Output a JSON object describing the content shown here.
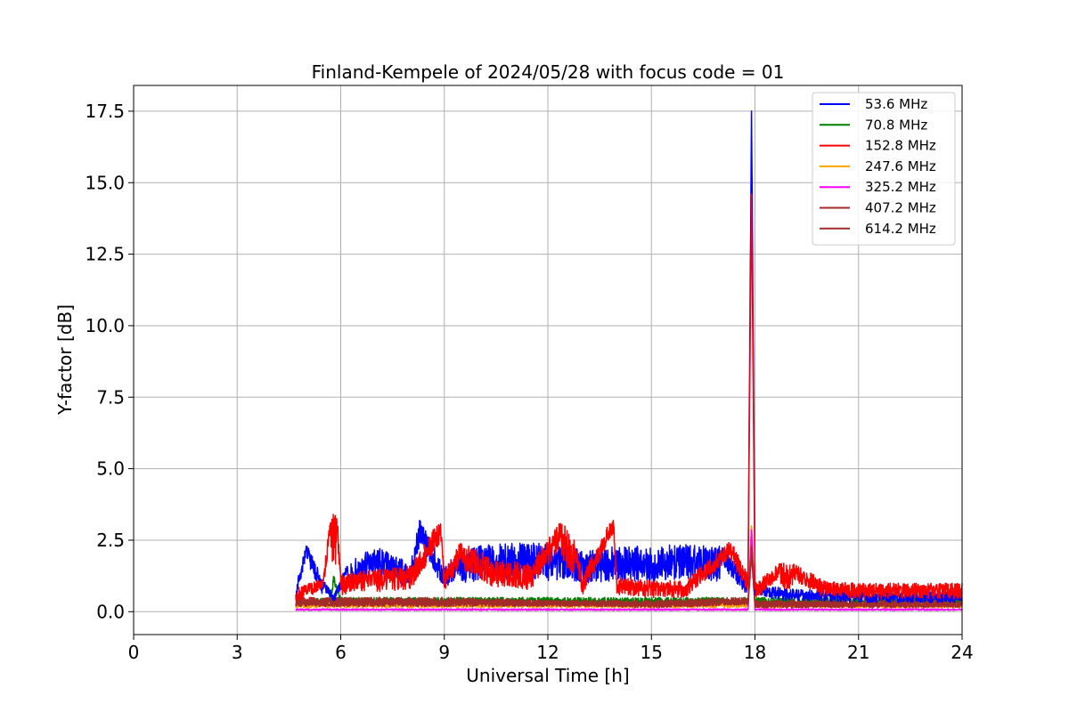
{
  "chart_data": {
    "type": "line",
    "title": "Finland-Kempele of 2024/05/28 with focus code = 01",
    "xlabel": "Universal Time [h]",
    "ylabel": "Y-factor [dB]",
    "xlim": [
      0,
      24
    ],
    "ylim": [
      -0.8,
      18.4
    ],
    "xticks": [
      0,
      3,
      6,
      9,
      12,
      15,
      18,
      21,
      24
    ],
    "xtick_labels": [
      "0",
      "3",
      "6",
      "9",
      "12",
      "15",
      "18",
      "21",
      "24"
    ],
    "yticks": [
      0,
      2.5,
      5,
      7.5,
      10,
      12.5,
      15,
      17.5
    ],
    "ytick_labels": [
      "0.0",
      "2.5",
      "5.0",
      "7.5",
      "10.0",
      "12.5",
      "15.0",
      "17.5"
    ],
    "grid": true,
    "legend_position": "top-right",
    "data_start_hour": 4.7,
    "series": [
      {
        "name": "  53.6 MHz",
        "color": "#0000ff",
        "points": [
          [
            4.7,
            0.9
          ],
          [
            5.0,
            2.4
          ],
          [
            5.5,
            1.1
          ],
          [
            5.8,
            0.6
          ],
          [
            6.2,
            1.7
          ],
          [
            7.0,
            2.3
          ],
          [
            8.0,
            1.7
          ],
          [
            8.3,
            3.3
          ],
          [
            9.0,
            1.6
          ],
          [
            9.5,
            2.2
          ],
          [
            10.5,
            2.4
          ],
          [
            11.5,
            2.4
          ],
          [
            12.3,
            2.4
          ],
          [
            13.0,
            2.2
          ],
          [
            14.0,
            2.3
          ],
          [
            15.0,
            2.3
          ],
          [
            16.0,
            2.4
          ],
          [
            17.0,
            2.3
          ],
          [
            17.8,
            1.2
          ],
          [
            17.9,
            17.5
          ],
          [
            18.0,
            1.0
          ],
          [
            19.0,
            0.8
          ],
          [
            21.0,
            0.7
          ],
          [
            24.0,
            0.7
          ]
        ]
      },
      {
        "name": "  70.8 MHz",
        "color": "#008000",
        "points": [
          [
            4.7,
            0.4
          ],
          [
            5.7,
            0.5
          ],
          [
            5.8,
            1.3
          ],
          [
            6.0,
            0.5
          ],
          [
            9.0,
            0.5
          ],
          [
            12.0,
            0.5
          ],
          [
            15.0,
            0.5
          ],
          [
            17.8,
            0.5
          ],
          [
            17.9,
            3.0
          ],
          [
            18.0,
            0.5
          ],
          [
            21.0,
            0.5
          ],
          [
            24.0,
            0.5
          ]
        ]
      },
      {
        "name": "152.8 MHz",
        "color": "#ff0000",
        "points": [
          [
            4.7,
            0.8
          ],
          [
            5.5,
            1.2
          ],
          [
            5.7,
            3.5
          ],
          [
            5.9,
            3.4
          ],
          [
            6.0,
            1.3
          ],
          [
            7.0,
            1.5
          ],
          [
            8.0,
            1.6
          ],
          [
            8.9,
            3.3
          ],
          [
            9.0,
            1.4
          ],
          [
            9.5,
            2.5
          ],
          [
            10.5,
            1.8
          ],
          [
            11.5,
            1.7
          ],
          [
            12.4,
            3.2
          ],
          [
            12.8,
            2.5
          ],
          [
            13.0,
            1.3
          ],
          [
            13.9,
            3.4
          ],
          [
            14.0,
            1.2
          ],
          [
            15.0,
            1.1
          ],
          [
            16.0,
            1.1
          ],
          [
            17.3,
            2.5
          ],
          [
            17.8,
            1.3
          ],
          [
            17.9,
            14.6
          ],
          [
            18.0,
            1.0
          ],
          [
            18.7,
            1.7
          ],
          [
            19.1,
            1.7
          ],
          [
            20.0,
            1.1
          ],
          [
            21.0,
            1.0
          ],
          [
            22.0,
            1.0
          ],
          [
            24.0,
            1.0
          ]
        ]
      },
      {
        "name": "247.6 MHz",
        "color": "#ffa500",
        "points": [
          [
            4.7,
            0.3
          ],
          [
            6.0,
            0.3
          ],
          [
            9.0,
            0.3
          ],
          [
            12.0,
            0.3
          ],
          [
            15.0,
            0.3
          ],
          [
            17.8,
            0.3
          ],
          [
            17.9,
            3.1
          ],
          [
            18.0,
            0.3
          ],
          [
            21.0,
            0.3
          ],
          [
            24.0,
            0.3
          ]
        ]
      },
      {
        "name": "325.2 MHz",
        "color": "#ff00ff",
        "points": [
          [
            4.7,
            0.1
          ],
          [
            6.0,
            0.1
          ],
          [
            9.0,
            0.1
          ],
          [
            12.0,
            0.1
          ],
          [
            15.0,
            0.1
          ],
          [
            17.8,
            0.1
          ],
          [
            17.9,
            2.9
          ],
          [
            18.0,
            0.1
          ],
          [
            21.0,
            0.1
          ],
          [
            24.0,
            0.1
          ]
        ]
      },
      {
        "name": "407.2 MHz",
        "color": "#a52a2a",
        "points": [
          [
            4.7,
            0.5
          ],
          [
            6.0,
            0.5
          ],
          [
            9.0,
            0.5
          ],
          [
            12.0,
            0.4
          ],
          [
            15.0,
            0.4
          ],
          [
            17.8,
            0.5
          ],
          [
            17.9,
            2.4
          ],
          [
            18.0,
            0.4
          ],
          [
            21.0,
            0.4
          ],
          [
            24.0,
            0.4
          ]
        ]
      },
      {
        "name": "614.2 MHz",
        "color": "#a52a2a",
        "points": [
          [
            4.7,
            0.4
          ],
          [
            6.0,
            0.4
          ],
          [
            9.0,
            0.4
          ],
          [
            12.0,
            0.4
          ],
          [
            15.0,
            0.3
          ],
          [
            17.8,
            0.4
          ],
          [
            17.9,
            2.0
          ],
          [
            18.0,
            0.3
          ],
          [
            21.0,
            0.3
          ],
          [
            24.0,
            0.3
          ]
        ]
      }
    ]
  }
}
